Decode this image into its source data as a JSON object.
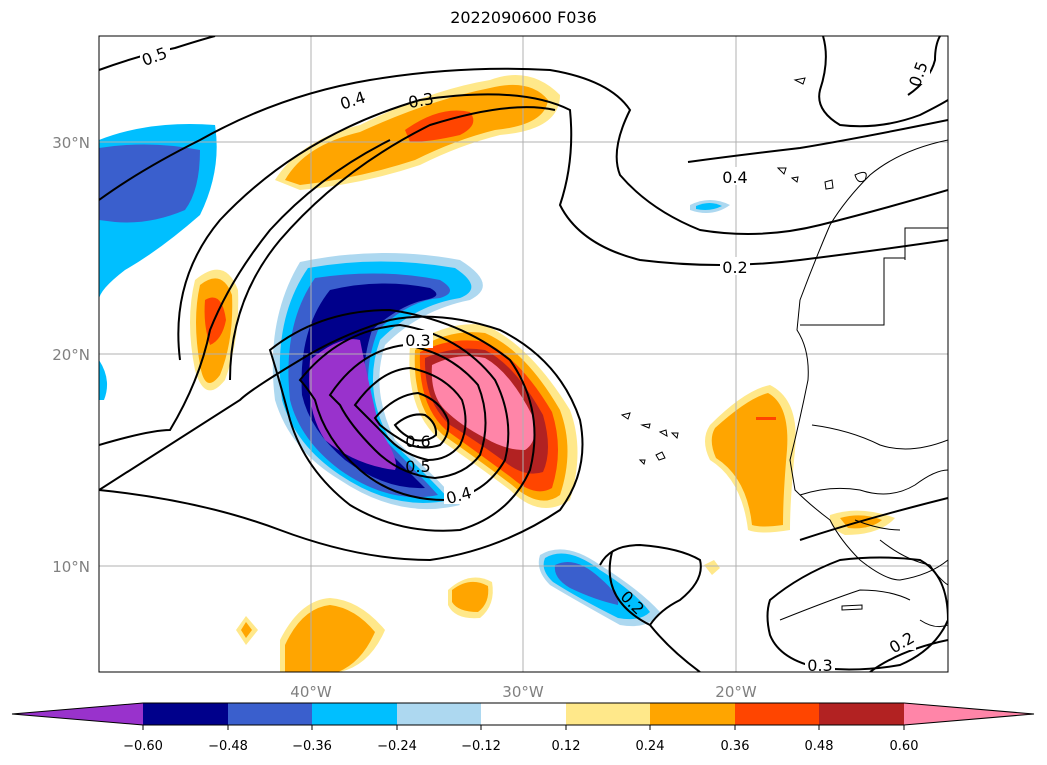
{
  "title": "2022090600 F036",
  "map": {
    "lat_ticks": [
      "30°N",
      "20°N",
      "10°N"
    ],
    "lon_ticks": [
      "40°W",
      "30°W",
      "20°W"
    ],
    "extent": {
      "lon": [
        -50,
        -10
      ],
      "lat": [
        5,
        35
      ]
    },
    "gridlines": true
  },
  "contour_labels": [
    "0.5",
    "0.4",
    "0.3",
    "0.5",
    "0.4",
    "0.2",
    "0.3",
    "0.6",
    "0.5",
    "0.4",
    "0.2",
    "0.3",
    "0.2"
  ],
  "colorbar": {
    "extend": "both",
    "ticks": [
      "−0.60",
      "−0.48",
      "−0.36",
      "−0.24",
      "−0.12",
      "0.12",
      "0.24",
      "0.36",
      "0.48",
      "0.60"
    ],
    "colors": [
      "#9932cc",
      "#00008b",
      "#3a5fcd",
      "#00bfff",
      "#add8f0",
      "#ffffff",
      "#ffe88a",
      "#ffa500",
      "#ff4500",
      "#b22222",
      "#ff85a8"
    ]
  }
}
